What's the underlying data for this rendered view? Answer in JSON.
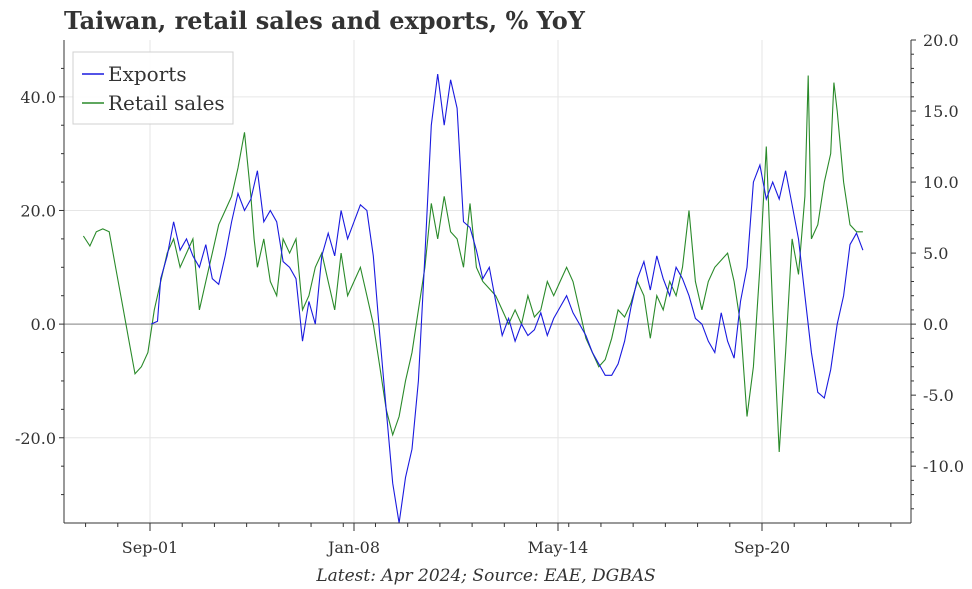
{
  "title": "Taiwan, retail sales and exports, % YoY",
  "caption": "Latest: Apr 2024; Source: EAE, DGBAS",
  "colors": {
    "exports": "#1a1adf",
    "retail": "#2a8a2a",
    "zero_line": "#9a9a9a",
    "grid": "#e6e6e6"
  },
  "chart_data": {
    "type": "line",
    "x_ticks": [
      "Sep-01",
      "Jan-08",
      "May-14",
      "Sep-20"
    ],
    "left_axis": {
      "ticks": [
        "40.0",
        "20.0",
        "0.0",
        "-20.0"
      ],
      "ylim": [
        -35,
        50
      ]
    },
    "right_axis": {
      "ticks": [
        "20.0",
        "15.0",
        "10.0",
        "5.0",
        "0.0",
        "-5.0",
        "-10.0"
      ],
      "ylim": [
        -14,
        20
      ]
    },
    "legend": {
      "position": "top-left",
      "entries": [
        "Exports",
        "Retail sales"
      ]
    },
    "series": [
      {
        "name": "Exports",
        "axis": "left",
        "points": [
          [
            2001.7,
            0
          ],
          [
            2001.9,
            0.5
          ],
          [
            2002.0,
            8
          ],
          [
            2002.2,
            12
          ],
          [
            2002.4,
            18
          ],
          [
            2002.6,
            13
          ],
          [
            2002.8,
            15
          ],
          [
            2003.0,
            12
          ],
          [
            2003.2,
            10
          ],
          [
            2003.4,
            14
          ],
          [
            2003.6,
            8
          ],
          [
            2003.8,
            7
          ],
          [
            2004.0,
            12
          ],
          [
            2004.2,
            18
          ],
          [
            2004.4,
            23
          ],
          [
            2004.6,
            20
          ],
          [
            2004.8,
            22
          ],
          [
            2005.0,
            27
          ],
          [
            2005.2,
            18
          ],
          [
            2005.4,
            20
          ],
          [
            2005.6,
            18
          ],
          [
            2005.8,
            11
          ],
          [
            2006.0,
            10
          ],
          [
            2006.2,
            8
          ],
          [
            2006.4,
            -3
          ],
          [
            2006.6,
            4
          ],
          [
            2006.8,
            0
          ],
          [
            2007.0,
            12
          ],
          [
            2007.2,
            16
          ],
          [
            2007.4,
            12
          ],
          [
            2007.6,
            20
          ],
          [
            2007.8,
            15
          ],
          [
            2008.0,
            18
          ],
          [
            2008.2,
            21
          ],
          [
            2008.4,
            20
          ],
          [
            2008.6,
            12
          ],
          [
            2008.8,
            -2
          ],
          [
            2009.0,
            -15
          ],
          [
            2009.2,
            -28
          ],
          [
            2009.4,
            -35
          ],
          [
            2009.6,
            -27
          ],
          [
            2009.8,
            -22
          ],
          [
            2010.0,
            -10
          ],
          [
            2010.2,
            12
          ],
          [
            2010.4,
            35
          ],
          [
            2010.6,
            44
          ],
          [
            2010.8,
            35
          ],
          [
            2011.0,
            43
          ],
          [
            2011.2,
            38
          ],
          [
            2011.4,
            18
          ],
          [
            2011.6,
            17
          ],
          [
            2011.8,
            13
          ],
          [
            2012.0,
            8
          ],
          [
            2012.2,
            10
          ],
          [
            2012.4,
            4
          ],
          [
            2012.6,
            -2
          ],
          [
            2012.8,
            1
          ],
          [
            2013.0,
            -3
          ],
          [
            2013.2,
            0
          ],
          [
            2013.4,
            -2
          ],
          [
            2013.6,
            -1
          ],
          [
            2013.8,
            2
          ],
          [
            2014.0,
            -2
          ],
          [
            2014.2,
            1
          ],
          [
            2014.4,
            3
          ],
          [
            2014.6,
            5
          ],
          [
            2014.8,
            2
          ],
          [
            2015.0,
            0
          ],
          [
            2015.2,
            -2
          ],
          [
            2015.4,
            -5
          ],
          [
            2015.6,
            -7
          ],
          [
            2015.8,
            -9
          ],
          [
            2016.0,
            -9
          ],
          [
            2016.2,
            -7
          ],
          [
            2016.4,
            -3
          ],
          [
            2016.6,
            3
          ],
          [
            2016.8,
            8
          ],
          [
            2017.0,
            11
          ],
          [
            2017.2,
            6
          ],
          [
            2017.4,
            12
          ],
          [
            2017.6,
            8
          ],
          [
            2017.8,
            5
          ],
          [
            2018.0,
            10
          ],
          [
            2018.2,
            8
          ],
          [
            2018.4,
            5
          ],
          [
            2018.6,
            1
          ],
          [
            2018.8,
            0
          ],
          [
            2019.0,
            -3
          ],
          [
            2019.2,
            -5
          ],
          [
            2019.4,
            2
          ],
          [
            2019.6,
            -3
          ],
          [
            2019.8,
            -6
          ],
          [
            2020.0,
            4
          ],
          [
            2020.2,
            10
          ],
          [
            2020.4,
            25
          ],
          [
            2020.6,
            28
          ],
          [
            2020.8,
            22
          ],
          [
            2021.0,
            25
          ],
          [
            2021.2,
            22
          ],
          [
            2021.4,
            27
          ],
          [
            2021.6,
            21
          ],
          [
            2021.8,
            15
          ],
          [
            2022.0,
            5
          ],
          [
            2022.2,
            -5
          ],
          [
            2022.4,
            -12
          ],
          [
            2022.6,
            -13
          ],
          [
            2022.8,
            -8
          ],
          [
            2023.0,
            0
          ],
          [
            2023.2,
            5
          ],
          [
            2023.4,
            14
          ],
          [
            2023.6,
            16
          ],
          [
            2023.8,
            13
          ]
        ]
      },
      {
        "name": "Retail sales",
        "axis": "right",
        "points": [
          [
            1999.6,
            6.2
          ],
          [
            1999.8,
            5.5
          ],
          [
            2000.0,
            6.5
          ],
          [
            2000.2,
            6.7
          ],
          [
            2000.4,
            6.5
          ],
          [
            2000.6,
            4
          ],
          [
            2000.8,
            1.5
          ],
          [
            2001.0,
            -1
          ],
          [
            2001.2,
            -3.5
          ],
          [
            2001.4,
            -3
          ],
          [
            2001.6,
            -2
          ],
          [
            2001.8,
            1
          ],
          [
            2002.0,
            3
          ],
          [
            2002.2,
            5
          ],
          [
            2002.4,
            6
          ],
          [
            2002.6,
            4
          ],
          [
            2002.8,
            5
          ],
          [
            2003.0,
            6
          ],
          [
            2003.2,
            1
          ],
          [
            2003.4,
            3
          ],
          [
            2003.6,
            5
          ],
          [
            2003.8,
            7
          ],
          [
            2004.0,
            8
          ],
          [
            2004.2,
            9
          ],
          [
            2004.4,
            11
          ],
          [
            2004.6,
            13.5
          ],
          [
            2004.8,
            9
          ],
          [
            2004.9,
            6
          ],
          [
            2005.0,
            4
          ],
          [
            2005.2,
            6
          ],
          [
            2005.4,
            3
          ],
          [
            2005.6,
            2
          ],
          [
            2005.8,
            6
          ],
          [
            2006.0,
            5
          ],
          [
            2006.2,
            6
          ],
          [
            2006.4,
            1
          ],
          [
            2006.6,
            2
          ],
          [
            2006.8,
            4
          ],
          [
            2007.0,
            5
          ],
          [
            2007.2,
            3
          ],
          [
            2007.4,
            1
          ],
          [
            2007.6,
            5
          ],
          [
            2007.8,
            2
          ],
          [
            2008.0,
            3
          ],
          [
            2008.2,
            4
          ],
          [
            2008.4,
            2
          ],
          [
            2008.6,
            0
          ],
          [
            2008.8,
            -3
          ],
          [
            2009.0,
            -6
          ],
          [
            2009.2,
            -7.8
          ],
          [
            2009.4,
            -6.5
          ],
          [
            2009.6,
            -4
          ],
          [
            2009.8,
            -2
          ],
          [
            2010.0,
            1
          ],
          [
            2010.2,
            4
          ],
          [
            2010.4,
            8.5
          ],
          [
            2010.6,
            6
          ],
          [
            2010.8,
            9
          ],
          [
            2011.0,
            6.5
          ],
          [
            2011.2,
            6
          ],
          [
            2011.4,
            4
          ],
          [
            2011.6,
            8.5
          ],
          [
            2011.8,
            4
          ],
          [
            2012.0,
            3
          ],
          [
            2012.2,
            2.5
          ],
          [
            2012.4,
            2
          ],
          [
            2012.6,
            1
          ],
          [
            2012.8,
            0
          ],
          [
            2013.0,
            1
          ],
          [
            2013.2,
            0
          ],
          [
            2013.4,
            2
          ],
          [
            2013.6,
            0.5
          ],
          [
            2013.8,
            1
          ],
          [
            2014.0,
            3
          ],
          [
            2014.2,
            2
          ],
          [
            2014.4,
            3
          ],
          [
            2014.6,
            4
          ],
          [
            2014.8,
            3
          ],
          [
            2015.0,
            1
          ],
          [
            2015.2,
            -1
          ],
          [
            2015.4,
            -2
          ],
          [
            2015.6,
            -3
          ],
          [
            2015.8,
            -2.5
          ],
          [
            2016.0,
            -1
          ],
          [
            2016.2,
            1
          ],
          [
            2016.4,
            0.5
          ],
          [
            2016.6,
            1.5
          ],
          [
            2016.8,
            3
          ],
          [
            2017.0,
            2
          ],
          [
            2017.2,
            -1
          ],
          [
            2017.4,
            2
          ],
          [
            2017.6,
            1
          ],
          [
            2017.8,
            3
          ],
          [
            2018.0,
            2
          ],
          [
            2018.2,
            4
          ],
          [
            2018.4,
            8
          ],
          [
            2018.6,
            3
          ],
          [
            2018.8,
            1
          ],
          [
            2019.0,
            3
          ],
          [
            2019.2,
            4
          ],
          [
            2019.6,
            5
          ],
          [
            2019.8,
            3
          ],
          [
            2020.0,
            0
          ],
          [
            2020.2,
            -6.5
          ],
          [
            2020.4,
            -3
          ],
          [
            2020.6,
            4
          ],
          [
            2020.8,
            12.5
          ],
          [
            2021.0,
            1
          ],
          [
            2021.2,
            -9
          ],
          [
            2021.4,
            -2
          ],
          [
            2021.6,
            6
          ],
          [
            2021.8,
            3.5
          ],
          [
            2022.0,
            9
          ],
          [
            2022.1,
            17.5
          ],
          [
            2022.2,
            6
          ],
          [
            2022.4,
            7
          ],
          [
            2022.6,
            10
          ],
          [
            2022.8,
            12
          ],
          [
            2022.9,
            17
          ],
          [
            2023.0,
            15
          ],
          [
            2023.2,
            10
          ],
          [
            2023.4,
            7
          ],
          [
            2023.6,
            6.5
          ],
          [
            2023.8,
            6.5
          ]
        ]
      }
    ]
  }
}
